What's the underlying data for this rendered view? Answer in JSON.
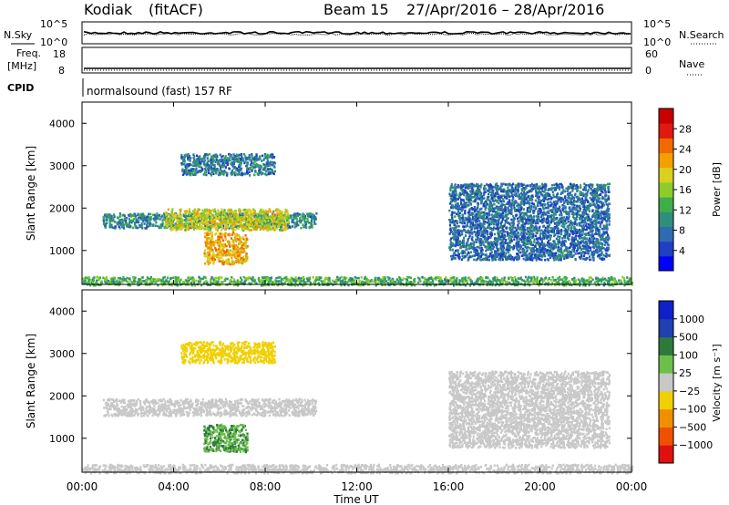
{
  "header": {
    "radar": "Kodiak",
    "mode": "(fitACF)",
    "beam": "Beam 15",
    "date_range": "27/Apr/2016 – 28/Apr/2016"
  },
  "summary": {
    "nsky_label": "N.Sky",
    "nsky_ticks": [
      "10^5",
      "10^0"
    ],
    "nsearch_label": "N.Search",
    "nsearch_ticks": [
      "10^5",
      "10^0"
    ],
    "freq_label_1": "Freq.",
    "freq_label_2": "[MHz]",
    "freq_ticks": [
      "18",
      "8"
    ],
    "nave_label": "Nave",
    "nave_ticks": [
      "60",
      "0"
    ],
    "cpid_label": "CPID",
    "cpid_text": "normalsound (fast) 157 RF"
  },
  "chart_data": [
    {
      "type": "heatmap",
      "name": "power-panel",
      "ylabel": "Slant Range [km]",
      "xlabel": "",
      "xlim": [
        0,
        24
      ],
      "ylim": [
        200,
        4500
      ],
      "yticks": [
        "1000",
        "2000",
        "3000",
        "4000"
      ],
      "colorbar": {
        "label": "Power [dB]",
        "ticks": [
          "28",
          "24",
          "20",
          "16",
          "12",
          "8",
          "4"
        ],
        "range": [
          0,
          30
        ],
        "colors": [
          "#0000ff",
          "#1f3fc4",
          "#2e6bb0",
          "#2f8f7a",
          "#3fae4a",
          "#8ccd2c",
          "#d8d11e",
          "#f4a000",
          "#f06a00",
          "#e01a10",
          "#c80000"
        ]
      },
      "features": [
        {
          "t": [
            0.9,
            10.2
          ],
          "range": [
            1550,
            1900
          ],
          "value": 9
        },
        {
          "t": [
            3.6,
            9.0
          ],
          "range": [
            1500,
            2000
          ],
          "value": 17
        },
        {
          "t": [
            5.3,
            7.2
          ],
          "range": [
            700,
            1450
          ],
          "value": 20
        },
        {
          "t": [
            4.3,
            8.4
          ],
          "range": [
            2800,
            3300
          ],
          "value": 8
        },
        {
          "t": [
            16.0,
            23.0
          ],
          "range": [
            800,
            2600
          ],
          "value": 7
        },
        {
          "t": [
            0,
            24
          ],
          "range": [
            200,
            400
          ],
          "value": 12
        }
      ]
    },
    {
      "type": "heatmap",
      "name": "velocity-panel",
      "ylabel": "Slant Range [km]",
      "xlabel": "Time UT",
      "xlim": [
        0,
        24
      ],
      "ylim": [
        200,
        4500
      ],
      "yticks": [
        "1000",
        "2000",
        "3000",
        "4000"
      ],
      "xticks": [
        "00:00",
        "04:00",
        "08:00",
        "12:00",
        "16:00",
        "20:00",
        "00:00"
      ],
      "colorbar": {
        "label": "Velocity [m s⁻¹]",
        "ticks": [
          "1000",
          "500",
          "100",
          "25",
          "−25",
          "−100",
          "−500",
          "−1000"
        ],
        "colors": [
          "#1020c8",
          "#2040b0",
          "#2e7a3a",
          "#6cc04a",
          "#c8c8c8",
          "#f0d000",
          "#f09000",
          "#f05000",
          "#e01010"
        ]
      },
      "features": [
        {
          "t": [
            0.9,
            10.2
          ],
          "range": [
            1550,
            1950
          ],
          "value": 0
        },
        {
          "t": [
            5.3,
            7.2
          ],
          "range": [
            700,
            1350
          ],
          "value": 300
        },
        {
          "t": [
            4.3,
            8.4
          ],
          "range": [
            2800,
            3300
          ],
          "value": -50
        },
        {
          "t": [
            16.0,
            23.0
          ],
          "range": [
            800,
            2600
          ],
          "value": 0
        },
        {
          "t": [
            0,
            24
          ],
          "range": [
            200,
            400
          ],
          "value": 20
        }
      ]
    }
  ]
}
